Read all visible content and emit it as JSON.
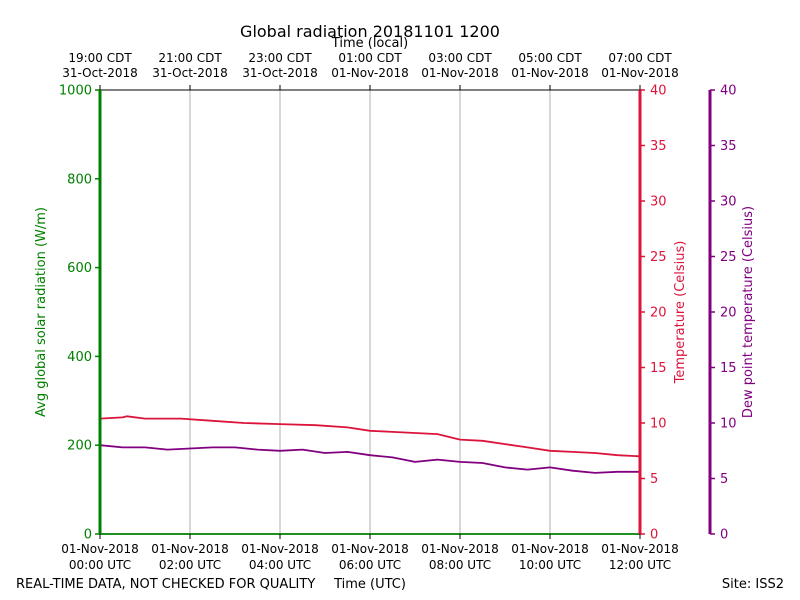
{
  "chart_data": {
    "type": "line",
    "title": "Global radiation 20181101 1200",
    "top_axis_label": "Time (local)",
    "xlabel": "Time (UTC)",
    "ylabel_left": "Avg global solar radiation (W/m)",
    "ylabel_right1": "Temperature (Celsius)",
    "ylabel_right2": "Dew point temperature (Celsius)",
    "footer_left": "REAL-TIME DATA, NOT CHECKED FOR QUALITY",
    "footer_right": "Site: ISS2",
    "xlim_hours": [
      0,
      12
    ],
    "ylim_left": [
      0,
      1000
    ],
    "ylim_right1": [
      0,
      40
    ],
    "ylim_right2": [
      0,
      40
    ],
    "left_ticks": [
      "0",
      "200",
      "400",
      "600",
      "800",
      "1000"
    ],
    "right_ticks": [
      "0",
      "5",
      "10",
      "15",
      "20",
      "25",
      "30",
      "35",
      "40"
    ],
    "bottom_ticks": [
      {
        "hour": 0,
        "line1": "01-Nov-2018",
        "line2": "00:00 UTC"
      },
      {
        "hour": 2,
        "line1": "01-Nov-2018",
        "line2": "02:00 UTC"
      },
      {
        "hour": 4,
        "line1": "01-Nov-2018",
        "line2": "04:00 UTC"
      },
      {
        "hour": 6,
        "line1": "01-Nov-2018",
        "line2": "06:00 UTC"
      },
      {
        "hour": 8,
        "line1": "01-Nov-2018",
        "line2": "08:00 UTC"
      },
      {
        "hour": 10,
        "line1": "01-Nov-2018",
        "line2": "10:00 UTC"
      },
      {
        "hour": 12,
        "line1": "01-Nov-2018",
        "line2": "12:00 UTC"
      }
    ],
    "top_ticks": [
      {
        "hour": 0,
        "line1": "19:00 CDT",
        "line2": "31-Oct-2018"
      },
      {
        "hour": 2,
        "line1": "21:00 CDT",
        "line2": "31-Oct-2018"
      },
      {
        "hour": 4,
        "line1": "23:00 CDT",
        "line2": "31-Oct-2018"
      },
      {
        "hour": 6,
        "line1": "01:00 CDT",
        "line2": "01-Nov-2018"
      },
      {
        "hour": 8,
        "line1": "03:00 CDT",
        "line2": "01-Nov-2018"
      },
      {
        "hour": 10,
        "line1": "05:00 CDT",
        "line2": "01-Nov-2018"
      },
      {
        "hour": 12,
        "line1": "07:00 CDT",
        "line2": "01-Nov-2018"
      }
    ],
    "series": [
      {
        "name": "Avg global solar radiation",
        "axis": "left",
        "color": "#008000",
        "x": [
          0,
          2,
          4,
          6,
          8,
          10,
          12
        ],
        "values": [
          0,
          0,
          0,
          0,
          0,
          0,
          0
        ]
      },
      {
        "name": "Temperature",
        "axis": "right1",
        "color": "#dc143c",
        "x": [
          0,
          0.5,
          0.6,
          1,
          1.8,
          2.5,
          3.2,
          4,
          4.8,
          5.5,
          6,
          6.5,
          7,
          7.5,
          8,
          8.5,
          9,
          9.5,
          10,
          10.5,
          11,
          11.5,
          12
        ],
        "values": [
          10.4,
          10.5,
          10.6,
          10.4,
          10.4,
          10.2,
          10.0,
          9.9,
          9.8,
          9.6,
          9.3,
          9.2,
          9.1,
          9.0,
          8.5,
          8.4,
          8.1,
          7.8,
          7.5,
          7.4,
          7.3,
          7.1,
          7.0
        ]
      },
      {
        "name": "Dew point temperature",
        "axis": "right2",
        "color": "#800080",
        "x": [
          0,
          0.5,
          1,
          1.5,
          2,
          2.5,
          3,
          3.5,
          4,
          4.5,
          5,
          5.5,
          6,
          6.5,
          7,
          7.5,
          8,
          8.5,
          9,
          9.5,
          10,
          10.5,
          11,
          11.5,
          12
        ],
        "values": [
          8.0,
          7.8,
          7.8,
          7.6,
          7.7,
          7.8,
          7.8,
          7.6,
          7.5,
          7.6,
          7.3,
          7.4,
          7.1,
          6.9,
          6.5,
          6.7,
          6.5,
          6.4,
          6.0,
          5.8,
          6.0,
          5.7,
          5.5,
          5.6,
          5.6
        ]
      }
    ]
  }
}
